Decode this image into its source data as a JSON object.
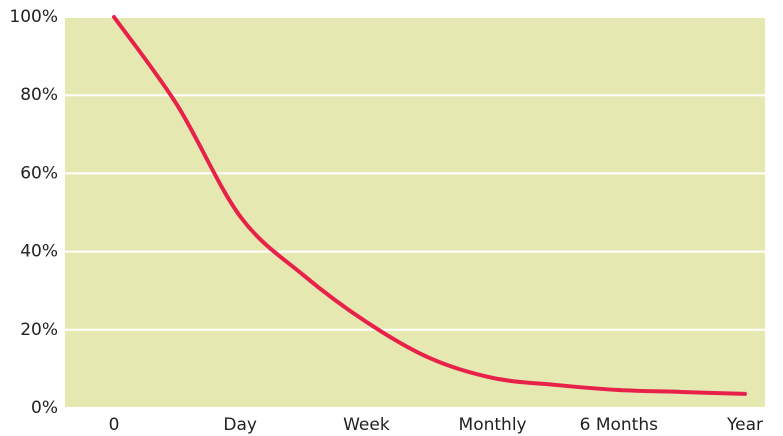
{
  "chart_data": {
    "type": "line",
    "categories": [
      "0",
      null,
      "Day",
      null,
      "Week",
      null,
      "Monthly",
      null,
      "6 Months",
      null,
      "Year"
    ],
    "values": [
      100,
      77.5,
      49,
      34,
      22,
      12.8,
      7.7,
      5.9,
      4.6,
      4.1,
      3.6
    ],
    "color": "#e8214a",
    "background": "#e6e8b1",
    "ylim": [
      0,
      100
    ],
    "yticks": [
      {
        "value": 0,
        "label": "0%"
      },
      {
        "value": 20,
        "label": "20%"
      },
      {
        "value": 40,
        "label": "40%"
      },
      {
        "value": 60,
        "label": "60%"
      },
      {
        "value": 80,
        "label": "80%"
      },
      {
        "value": 100,
        "label": "100%"
      }
    ],
    "grid": true
  }
}
